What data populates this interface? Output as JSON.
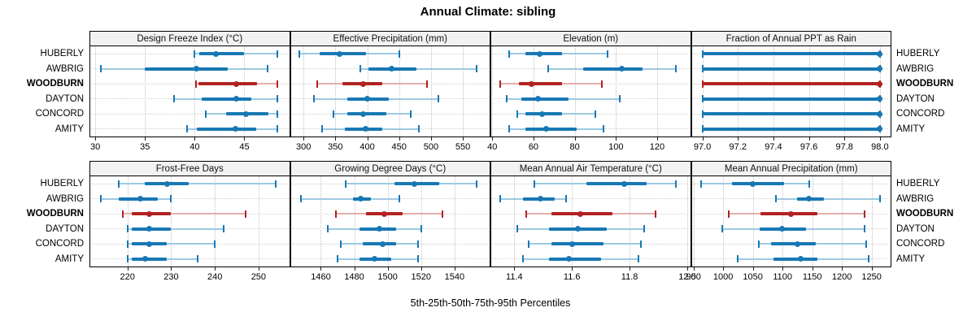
{
  "chart_data": {
    "type": "dotplot",
    "title": "Annual Climate: sibling",
    "footnote": "5th-25th-50th-75th-95th Percentiles",
    "percentiles": [
      5,
      25,
      50,
      75,
      95
    ],
    "stations": [
      "HUBERLY",
      "AWBRIG",
      "WOODBURN",
      "DAYTON",
      "CONCORD",
      "AMITY"
    ],
    "highlight_station": "WOODBURN",
    "legend_position": "none",
    "grid": "dotted",
    "colors": {
      "normal": "#1878b4",
      "normal_light": "#9ec9e2",
      "highlight": "#b22222",
      "highlight_light": "#e2aeab",
      "gridline": "#c4c4c4",
      "header_bg": "#f2f2f2",
      "border": "#000000"
    },
    "panels": [
      {
        "title": "Design Freeze Index (°C)",
        "row": 0,
        "col": 0,
        "xlim": [
          29.5,
          49.5
        ],
        "ticks": [
          {
            "v": 30,
            "l": "30"
          },
          {
            "v": 35,
            "l": "35"
          },
          {
            "v": 40,
            "l": "40"
          },
          {
            "v": 45,
            "l": "45"
          }
        ],
        "series": {
          "HUBERLY": [
            40.0,
            40.5,
            42.1,
            45.0,
            48.3
          ],
          "AWBRIG": [
            30.6,
            35.0,
            40.2,
            43.3,
            47.3
          ],
          "WOODBURN": [
            40.1,
            40.4,
            44.2,
            46.3,
            48.3
          ],
          "DAYTON": [
            37.9,
            40.7,
            44.2,
            45.7,
            48.3
          ],
          "CONCORD": [
            41.1,
            43.2,
            45.2,
            47.4,
            48.3
          ],
          "AMITY": [
            39.2,
            40.2,
            44.1,
            46.2,
            48.3
          ]
        }
      },
      {
        "title": "Effective Precipitation (mm)",
        "row": 0,
        "col": 1,
        "xlim": [
          280,
          592
        ],
        "ticks": [
          {
            "v": 300,
            "l": "300"
          },
          {
            "v": 350,
            "l": "350"
          },
          {
            "v": 400,
            "l": "400"
          },
          {
            "v": 450,
            "l": "450"
          },
          {
            "v": 500,
            "l": "500"
          },
          {
            "v": 550,
            "l": "550"
          }
        ],
        "series": {
          "HUBERLY": [
            293,
            325,
            356,
            398,
            450
          ],
          "AWBRIG": [
            389,
            402,
            438,
            477,
            571
          ],
          "WOODBURN": [
            322,
            361,
            393,
            424,
            494
          ],
          "DAYTON": [
            316,
            369,
            400,
            434,
            512
          ],
          "CONCORD": [
            347,
            369,
            394,
            430,
            468
          ],
          "AMITY": [
            329,
            365,
            397,
            423,
            481
          ]
        }
      },
      {
        "title": "Elevation (m)",
        "row": 0,
        "col": 2,
        "xlim": [
          39.5,
          136
        ],
        "ticks": [
          {
            "v": 40,
            "l": "40"
          },
          {
            "v": 60,
            "l": "60"
          },
          {
            "v": 80,
            "l": "80"
          },
          {
            "v": 100,
            "l": "100"
          },
          {
            "v": 120,
            "l": "120"
          }
        ],
        "series": {
          "HUBERLY": [
            48,
            56,
            63,
            74,
            96
          ],
          "AWBRIG": [
            67,
            84,
            103,
            113,
            129
          ],
          "WOODBURN": [
            44,
            53,
            59,
            74,
            93
          ],
          "DAYTON": [
            47,
            54,
            62,
            77,
            102
          ],
          "CONCORD": [
            52,
            56,
            64,
            74,
            90
          ],
          "AMITY": [
            48,
            56,
            66,
            81,
            94
          ]
        }
      },
      {
        "title": "Fraction of Annual PPT as Rain",
        "row": 0,
        "col": 3,
        "xlim": [
          96.94,
          98.06
        ],
        "ticks": [
          {
            "v": 97.0,
            "l": "97.0"
          },
          {
            "v": 97.2,
            "l": "97.2"
          },
          {
            "v": 97.4,
            "l": "97.4"
          },
          {
            "v": 97.6,
            "l": "97.6"
          },
          {
            "v": 97.8,
            "l": "97.8"
          },
          {
            "v": 98.0,
            "l": "98.0"
          }
        ],
        "series": {
          "HUBERLY": [
            97.0,
            97.0,
            98.0,
            98.0,
            98.0
          ],
          "AWBRIG": [
            97.0,
            97.0,
            98.0,
            98.0,
            98.0
          ],
          "WOODBURN": [
            97.0,
            97.0,
            98.0,
            98.0,
            98.0
          ],
          "DAYTON": [
            97.0,
            97.0,
            98.0,
            98.0,
            98.0
          ],
          "CONCORD": [
            97.0,
            97.0,
            98.0,
            98.0,
            98.0
          ],
          "AMITY": [
            97.0,
            97.0,
            98.0,
            98.0,
            98.0
          ]
        }
      },
      {
        "title": "Frost-Free Days",
        "row": 1,
        "col": 0,
        "xlim": [
          211.5,
          257
        ],
        "ticks": [
          {
            "v": 220,
            "l": "220"
          },
          {
            "v": 230,
            "l": "230"
          },
          {
            "v": 240,
            "l": "240"
          },
          {
            "v": 250,
            "l": "250"
          }
        ],
        "series": {
          "HUBERLY": [
            218,
            224,
            229,
            234,
            254
          ],
          "AWBRIG": [
            214,
            218,
            223,
            227,
            230
          ],
          "WOODBURN": [
            219,
            221,
            225,
            230,
            247
          ],
          "DAYTON": [
            220,
            221,
            225,
            230,
            242
          ],
          "CONCORD": [
            220,
            221,
            225,
            229,
            240
          ],
          "AMITY": [
            220,
            221,
            224,
            229,
            236
          ]
        }
      },
      {
        "title": "Growing Degree Days (°C)",
        "row": 1,
        "col": 1,
        "xlim": [
          1442,
          1561
        ],
        "ticks": [
          {
            "v": 1460,
            "l": "1460"
          },
          {
            "v": 1480,
            "l": "1480"
          },
          {
            "v": 1500,
            "l": "1500"
          },
          {
            "v": 1520,
            "l": "1520"
          },
          {
            "v": 1540,
            "l": "1540"
          }
        ],
        "series": {
          "HUBERLY": [
            1475,
            1504,
            1516,
            1531,
            1553
          ],
          "AWBRIG": [
            1448,
            1479,
            1484,
            1490,
            1507
          ],
          "WOODBURN": [
            1469,
            1487,
            1498,
            1509,
            1533
          ],
          "DAYTON": [
            1464,
            1483,
            1495,
            1505,
            1520
          ],
          "CONCORD": [
            1472,
            1485,
            1497,
            1505,
            1518
          ],
          "AMITY": [
            1470,
            1483,
            1492,
            1502,
            1518
          ]
        }
      },
      {
        "title": "Mean Annual Air Temperature (°C)",
        "row": 1,
        "col": 2,
        "xlim": [
          11.32,
          12.01
        ],
        "ticks": [
          {
            "v": 11.4,
            "l": "11.4"
          },
          {
            "v": 11.6,
            "l": "11.6"
          },
          {
            "v": 11.8,
            "l": "11.8"
          },
          {
            "v": 12.0,
            "l": "12.0"
          }
        ],
        "series": {
          "HUBERLY": [
            11.47,
            11.65,
            11.78,
            11.86,
            11.96
          ],
          "AWBRIG": [
            11.35,
            11.43,
            11.49,
            11.54,
            11.58
          ],
          "WOODBURN": [
            11.44,
            11.53,
            11.63,
            11.74,
            11.89
          ],
          "DAYTON": [
            11.41,
            11.52,
            11.62,
            11.72,
            11.85
          ],
          "CONCORD": [
            11.45,
            11.53,
            11.6,
            11.71,
            11.84
          ],
          "AMITY": [
            11.43,
            11.52,
            11.59,
            11.7,
            11.83
          ]
        }
      },
      {
        "title": "Mean Annual Precipitation (mm)",
        "row": 1,
        "col": 3,
        "xlim": [
          947,
          1282
        ],
        "ticks": [
          {
            "v": 950,
            "l": "950"
          },
          {
            "v": 1000,
            "l": "1000"
          },
          {
            "v": 1050,
            "l": "1050"
          },
          {
            "v": 1100,
            "l": "1100"
          },
          {
            "v": 1150,
            "l": "1150"
          },
          {
            "v": 1200,
            "l": "1200"
          },
          {
            "v": 1250,
            "l": "1250"
          }
        ],
        "series": {
          "HUBERLY": [
            963,
            1015,
            1050,
            1102,
            1145
          ],
          "AWBRIG": [
            1089,
            1125,
            1144,
            1169,
            1264
          ],
          "WOODBURN": [
            1010,
            1063,
            1114,
            1159,
            1238
          ],
          "DAYTON": [
            999,
            1062,
            1099,
            1140,
            1238
          ],
          "CONCORD": [
            1060,
            1081,
            1125,
            1156,
            1241
          ],
          "AMITY": [
            1025,
            1085,
            1130,
            1159,
            1245
          ]
        }
      }
    ]
  }
}
